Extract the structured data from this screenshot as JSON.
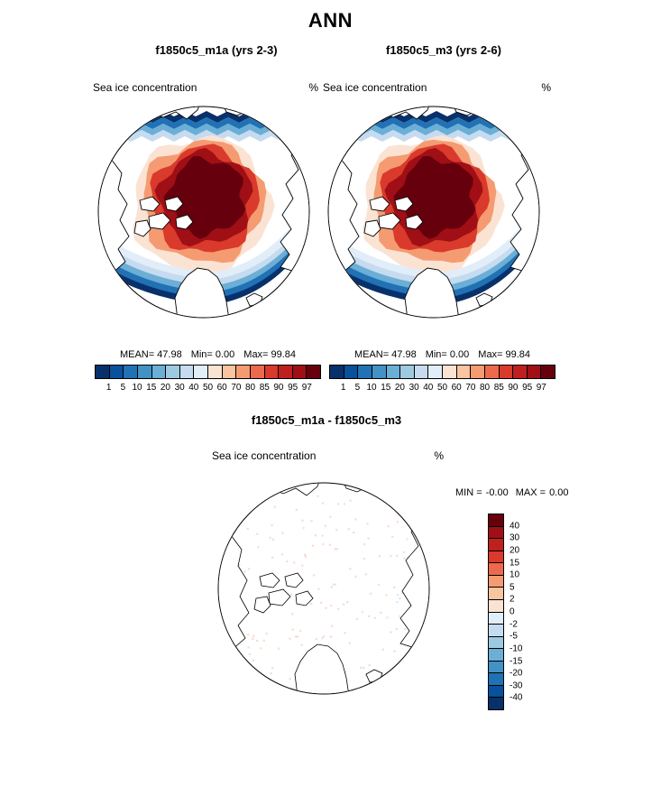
{
  "figure": {
    "title": "ANN"
  },
  "panels": [
    {
      "id": "left",
      "title": "f1850c5_m1a (yrs 2-3)",
      "field_label": "Sea ice concentration",
      "units": "%",
      "stats": {
        "mean_label": "MEAN=",
        "mean": "47.98",
        "min_label": "Min=",
        "min": "0.00",
        "max_label": "Max=",
        "max": "99.84"
      },
      "colorbar_ticks": [
        "1",
        "5",
        "10",
        "15",
        "20",
        "30",
        "40",
        "50",
        "60",
        "70",
        "80",
        "85",
        "90",
        "95",
        "97"
      ]
    },
    {
      "id": "right",
      "title": "f1850c5_m3 (yrs 2-6)",
      "field_label": "Sea ice concentration",
      "units": "%",
      "stats": {
        "mean_label": "MEAN=",
        "mean": "47.98",
        "min_label": "Min=",
        "min": "0.00",
        "max_label": "Max=",
        "max": "99.84"
      },
      "colorbar_ticks": [
        "1",
        "5",
        "10",
        "15",
        "20",
        "30",
        "40",
        "50",
        "60",
        "70",
        "80",
        "85",
        "90",
        "95",
        "97"
      ]
    },
    {
      "id": "diff",
      "title": "f1850c5_m1a - f1850c5_m3",
      "field_label": "Sea ice concentration",
      "units": "%",
      "stats": {
        "min_label": "MIN =",
        "min": "-0.00",
        "max_label": "MAX =",
        "max": "0.00"
      },
      "colorbar_ticks": [
        "40",
        "30",
        "20",
        "15",
        "10",
        "5",
        "2",
        "0",
        "-2",
        "-5",
        "-10",
        "-15",
        "-20",
        "-30",
        "-40"
      ]
    }
  ],
  "colors": {
    "conc_palette": [
      "#08306b",
      "#08519c",
      "#2171b5",
      "#4292c6",
      "#6baed6",
      "#9ecae1",
      "#c6dbef",
      "#e1edf8",
      "#fbe3d3",
      "#f9c4a0",
      "#f59b72",
      "#ec6a4b",
      "#d93a2b",
      "#c01f1f",
      "#a00f15",
      "#67000d"
    ],
    "diff_palette": [
      "#67000d",
      "#a00f15",
      "#c01f1f",
      "#d93a2b",
      "#ec6a4b",
      "#f59b72",
      "#f9c4a0",
      "#fbe3d3",
      "#e1edf8",
      "#c6dbef",
      "#9ecae1",
      "#6baed6",
      "#4292c6",
      "#2171b5",
      "#08519c",
      "#08306b"
    ]
  },
  "chart_data": [
    {
      "type": "heatmap",
      "projection": "north-polar-stereographic",
      "title": "f1850c5_m1a (yrs 2-3)",
      "variable": "Sea ice concentration",
      "units": "%",
      "stats": {
        "mean": 47.98,
        "min": 0.0,
        "max": 99.84
      },
      "contour_levels": [
        1,
        5,
        10,
        15,
        20,
        30,
        40,
        50,
        60,
        70,
        80,
        85,
        90,
        95,
        97
      ],
      "palette": "blue-to-red, 16 classes",
      "legend_position": "below, horizontal"
    },
    {
      "type": "heatmap",
      "projection": "north-polar-stereographic",
      "title": "f1850c5_m3 (yrs 2-6)",
      "variable": "Sea ice concentration",
      "units": "%",
      "stats": {
        "mean": 47.98,
        "min": 0.0,
        "max": 99.84
      },
      "contour_levels": [
        1,
        5,
        10,
        15,
        20,
        30,
        40,
        50,
        60,
        70,
        80,
        85,
        90,
        95,
        97
      ],
      "palette": "blue-to-red, 16 classes",
      "legend_position": "below, horizontal"
    },
    {
      "type": "heatmap",
      "projection": "north-polar-stereographic",
      "title": "f1850c5_m1a - f1850c5_m3",
      "variable": "Sea ice concentration difference",
      "units": "%",
      "stats": {
        "min": -0.0,
        "max": 0.0
      },
      "contour_levels": [
        40,
        30,
        20,
        15,
        10,
        5,
        2,
        0,
        -2,
        -5,
        -10,
        -15,
        -20,
        -30,
        -40
      ],
      "palette": "red-to-blue, 16 classes",
      "legend_position": "right, vertical"
    }
  ]
}
